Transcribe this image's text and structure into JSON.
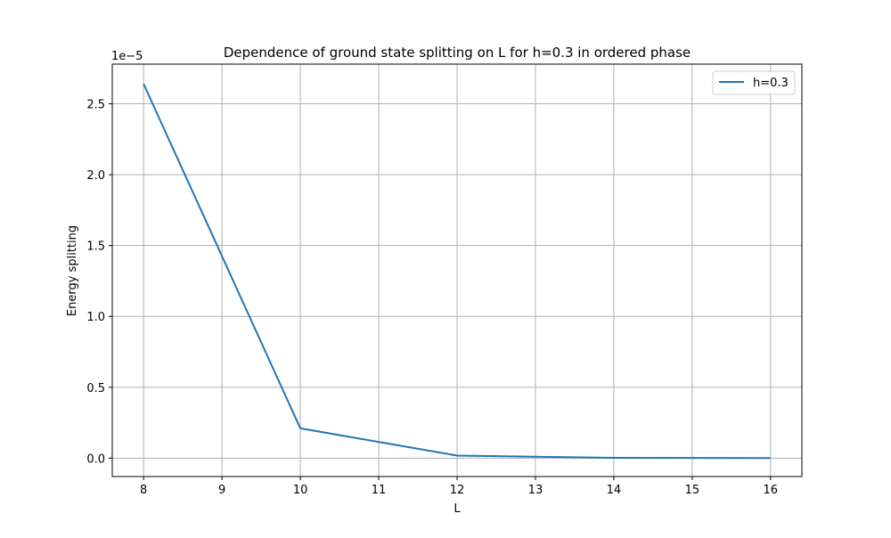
{
  "chart_data": {
    "type": "line",
    "title": "Dependence of ground state splitting on L for h=0.3 in ordered phase",
    "xlabel": "L",
    "ylabel": "Energy splitting",
    "y_offset_label": "1e−5",
    "x_ticks": [
      8,
      9,
      10,
      11,
      12,
      13,
      14,
      15,
      16
    ],
    "y_ticks": [
      0.0,
      0.5,
      1.0,
      1.5,
      2.0,
      2.5
    ],
    "y_tick_labels": [
      "0.0",
      "0.5",
      "1.0",
      "1.5",
      "2.0",
      "2.5"
    ],
    "y_scale_note": "values in units of 1e-5",
    "xlim": [
      7.6,
      16.4
    ],
    "ylim": [
      -0.13,
      2.78
    ],
    "grid": true,
    "legend_position": "top-right",
    "series": [
      {
        "name": "h=0.3",
        "color": "#1f77b4",
        "x": [
          8,
          10,
          12,
          14,
          16
        ],
        "y": [
          2.64,
          0.21,
          0.018,
          0.002,
          0.0002
        ]
      }
    ]
  }
}
